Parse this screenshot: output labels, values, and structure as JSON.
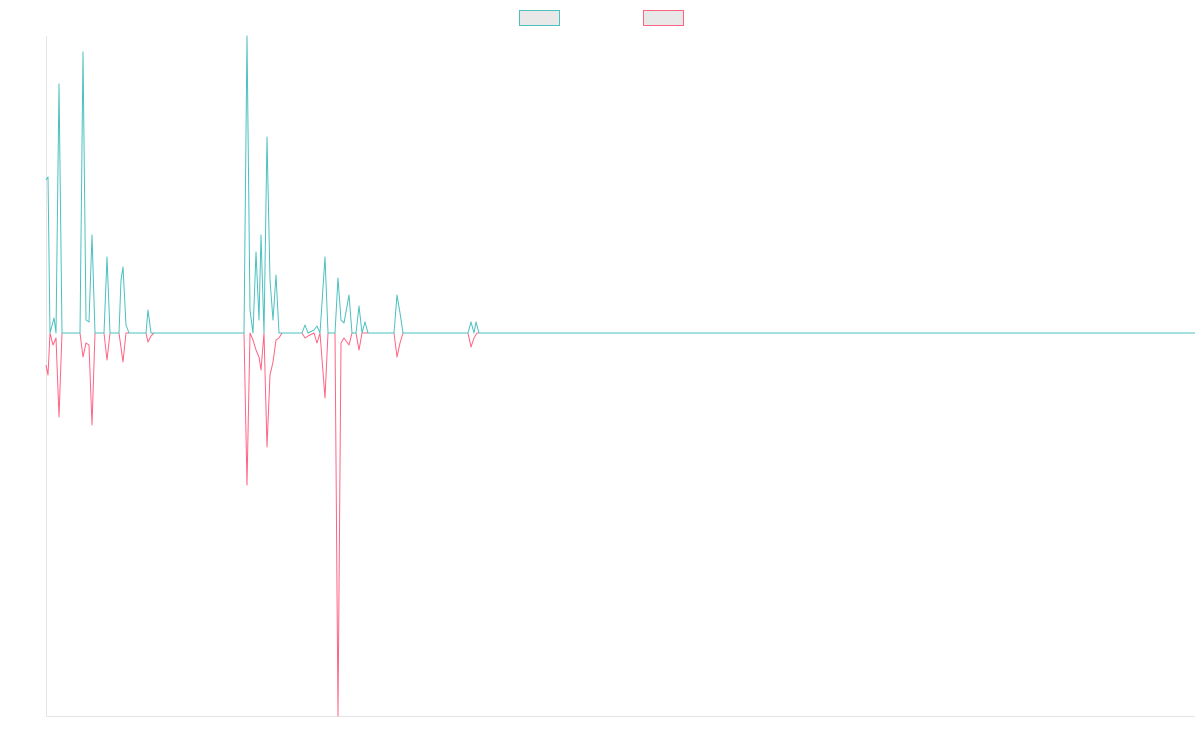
{
  "chart_data": {
    "type": "line",
    "xlim": [
      0,
      1149
    ],
    "ylim": [
      -383,
      297
    ],
    "series": [
      {
        "color": "#4bc0c0",
        "x": [
          0,
          2,
          4,
          8,
          10,
          13,
          16,
          34,
          37,
          40,
          43,
          46,
          49,
          58,
          61,
          64,
          73,
          75,
          77,
          80,
          83,
          100,
          102,
          105,
          198,
          201,
          204,
          207,
          210,
          213,
          215,
          218,
          221,
          224,
          227,
          230,
          233,
          256,
          259,
          262,
          268,
          271,
          274,
          279,
          282,
          289,
          292,
          295,
          298,
          303,
          306,
          310,
          313,
          316,
          319,
          322,
          348,
          351,
          354,
          357,
          422,
          425,
          428,
          430,
          433,
          1149
        ],
        "values": [
          153,
          156,
          0,
          15,
          0,
          249,
          0,
          0,
          281,
          13,
          11,
          98,
          0,
          0,
          76,
          0,
          0,
          53,
          66,
          8,
          0,
          0,
          23,
          0,
          0,
          297,
          23,
          0,
          81,
          13,
          98,
          0,
          196,
          53,
          13,
          58,
          0,
          0,
          8,
          0,
          3,
          7,
          0,
          76,
          0,
          0,
          55,
          13,
          10,
          38,
          0,
          0,
          27,
          0,
          11,
          0,
          0,
          38,
          20,
          0,
          0,
          11,
          0,
          11,
          0,
          0
        ]
      },
      {
        "color": "#ff6384",
        "x": [
          0,
          2,
          4,
          7,
          10,
          13,
          16,
          34,
          37,
          40,
          43,
          46,
          49,
          58,
          61,
          64,
          73,
          77,
          80,
          100,
          102,
          105,
          108,
          198,
          201,
          204,
          207,
          210,
          213,
          215,
          218,
          221,
          224,
          227,
          230,
          233,
          236,
          256,
          259,
          262,
          268,
          271,
          274,
          279,
          282,
          289,
          292,
          295,
          298,
          303,
          306,
          310,
          313,
          316,
          348,
          351,
          354,
          357,
          422,
          425,
          428,
          431,
          1149
        ],
        "values": [
          -32,
          -42,
          0,
          -12,
          -5,
          -84,
          0,
          0,
          -24,
          -10,
          -12,
          -92,
          0,
          0,
          -27,
          0,
          0,
          -29,
          0,
          0,
          -9,
          -3,
          0,
          0,
          -152,
          0,
          -7,
          -17,
          -24,
          -37,
          0,
          -114,
          -42,
          -29,
          -7,
          -5,
          0,
          0,
          -5,
          -3,
          0,
          -10,
          0,
          -65,
          0,
          0,
          -383,
          -10,
          -5,
          -12,
          0,
          0,
          -17,
          0,
          0,
          -24,
          -10,
          0,
          0,
          -14,
          -5,
          0,
          0
        ]
      }
    ]
  }
}
